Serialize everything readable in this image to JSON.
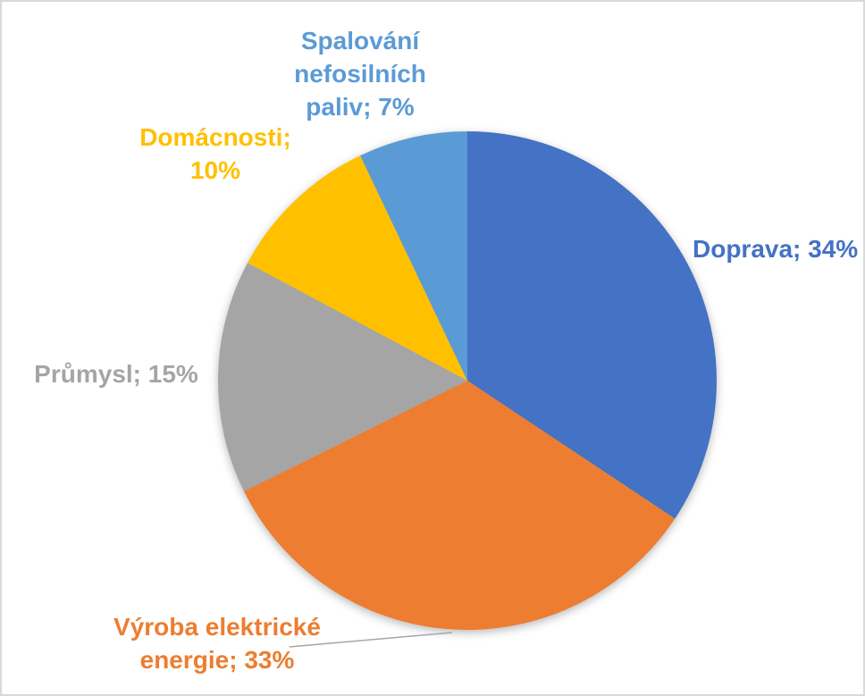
{
  "chart_data": {
    "type": "pie",
    "title": "",
    "categories": [
      "Doprava",
      "Výroba elektrické energie",
      "Průmysl",
      "Domácnosti",
      "Spalování nefosilních paliv"
    ],
    "values": [
      34,
      33,
      15,
      10,
      7
    ],
    "unit": "%",
    "colors": [
      "#4472C4",
      "#ED7D31",
      "#A5A5A5",
      "#FFC000",
      "#5B9BD5"
    ],
    "start_angle_deg": 0,
    "direction": "clockwise",
    "legend": "none",
    "label_style": "outside-end, colored to match slice",
    "labels": {
      "doprava": "Doprava; 34%",
      "vyroba": "Výroba elektrické\nenergie; 33%",
      "prumysl": "Průmysl; 15%",
      "domacnosti": "Domácnosti;\n10%",
      "spalovani": "Spalování\nnefosilních\npaliv; 7%"
    },
    "leader_line_color": "#A6A6A6",
    "background_color": "#FFFFFF",
    "frame_border_color": "#D9D9D9"
  }
}
